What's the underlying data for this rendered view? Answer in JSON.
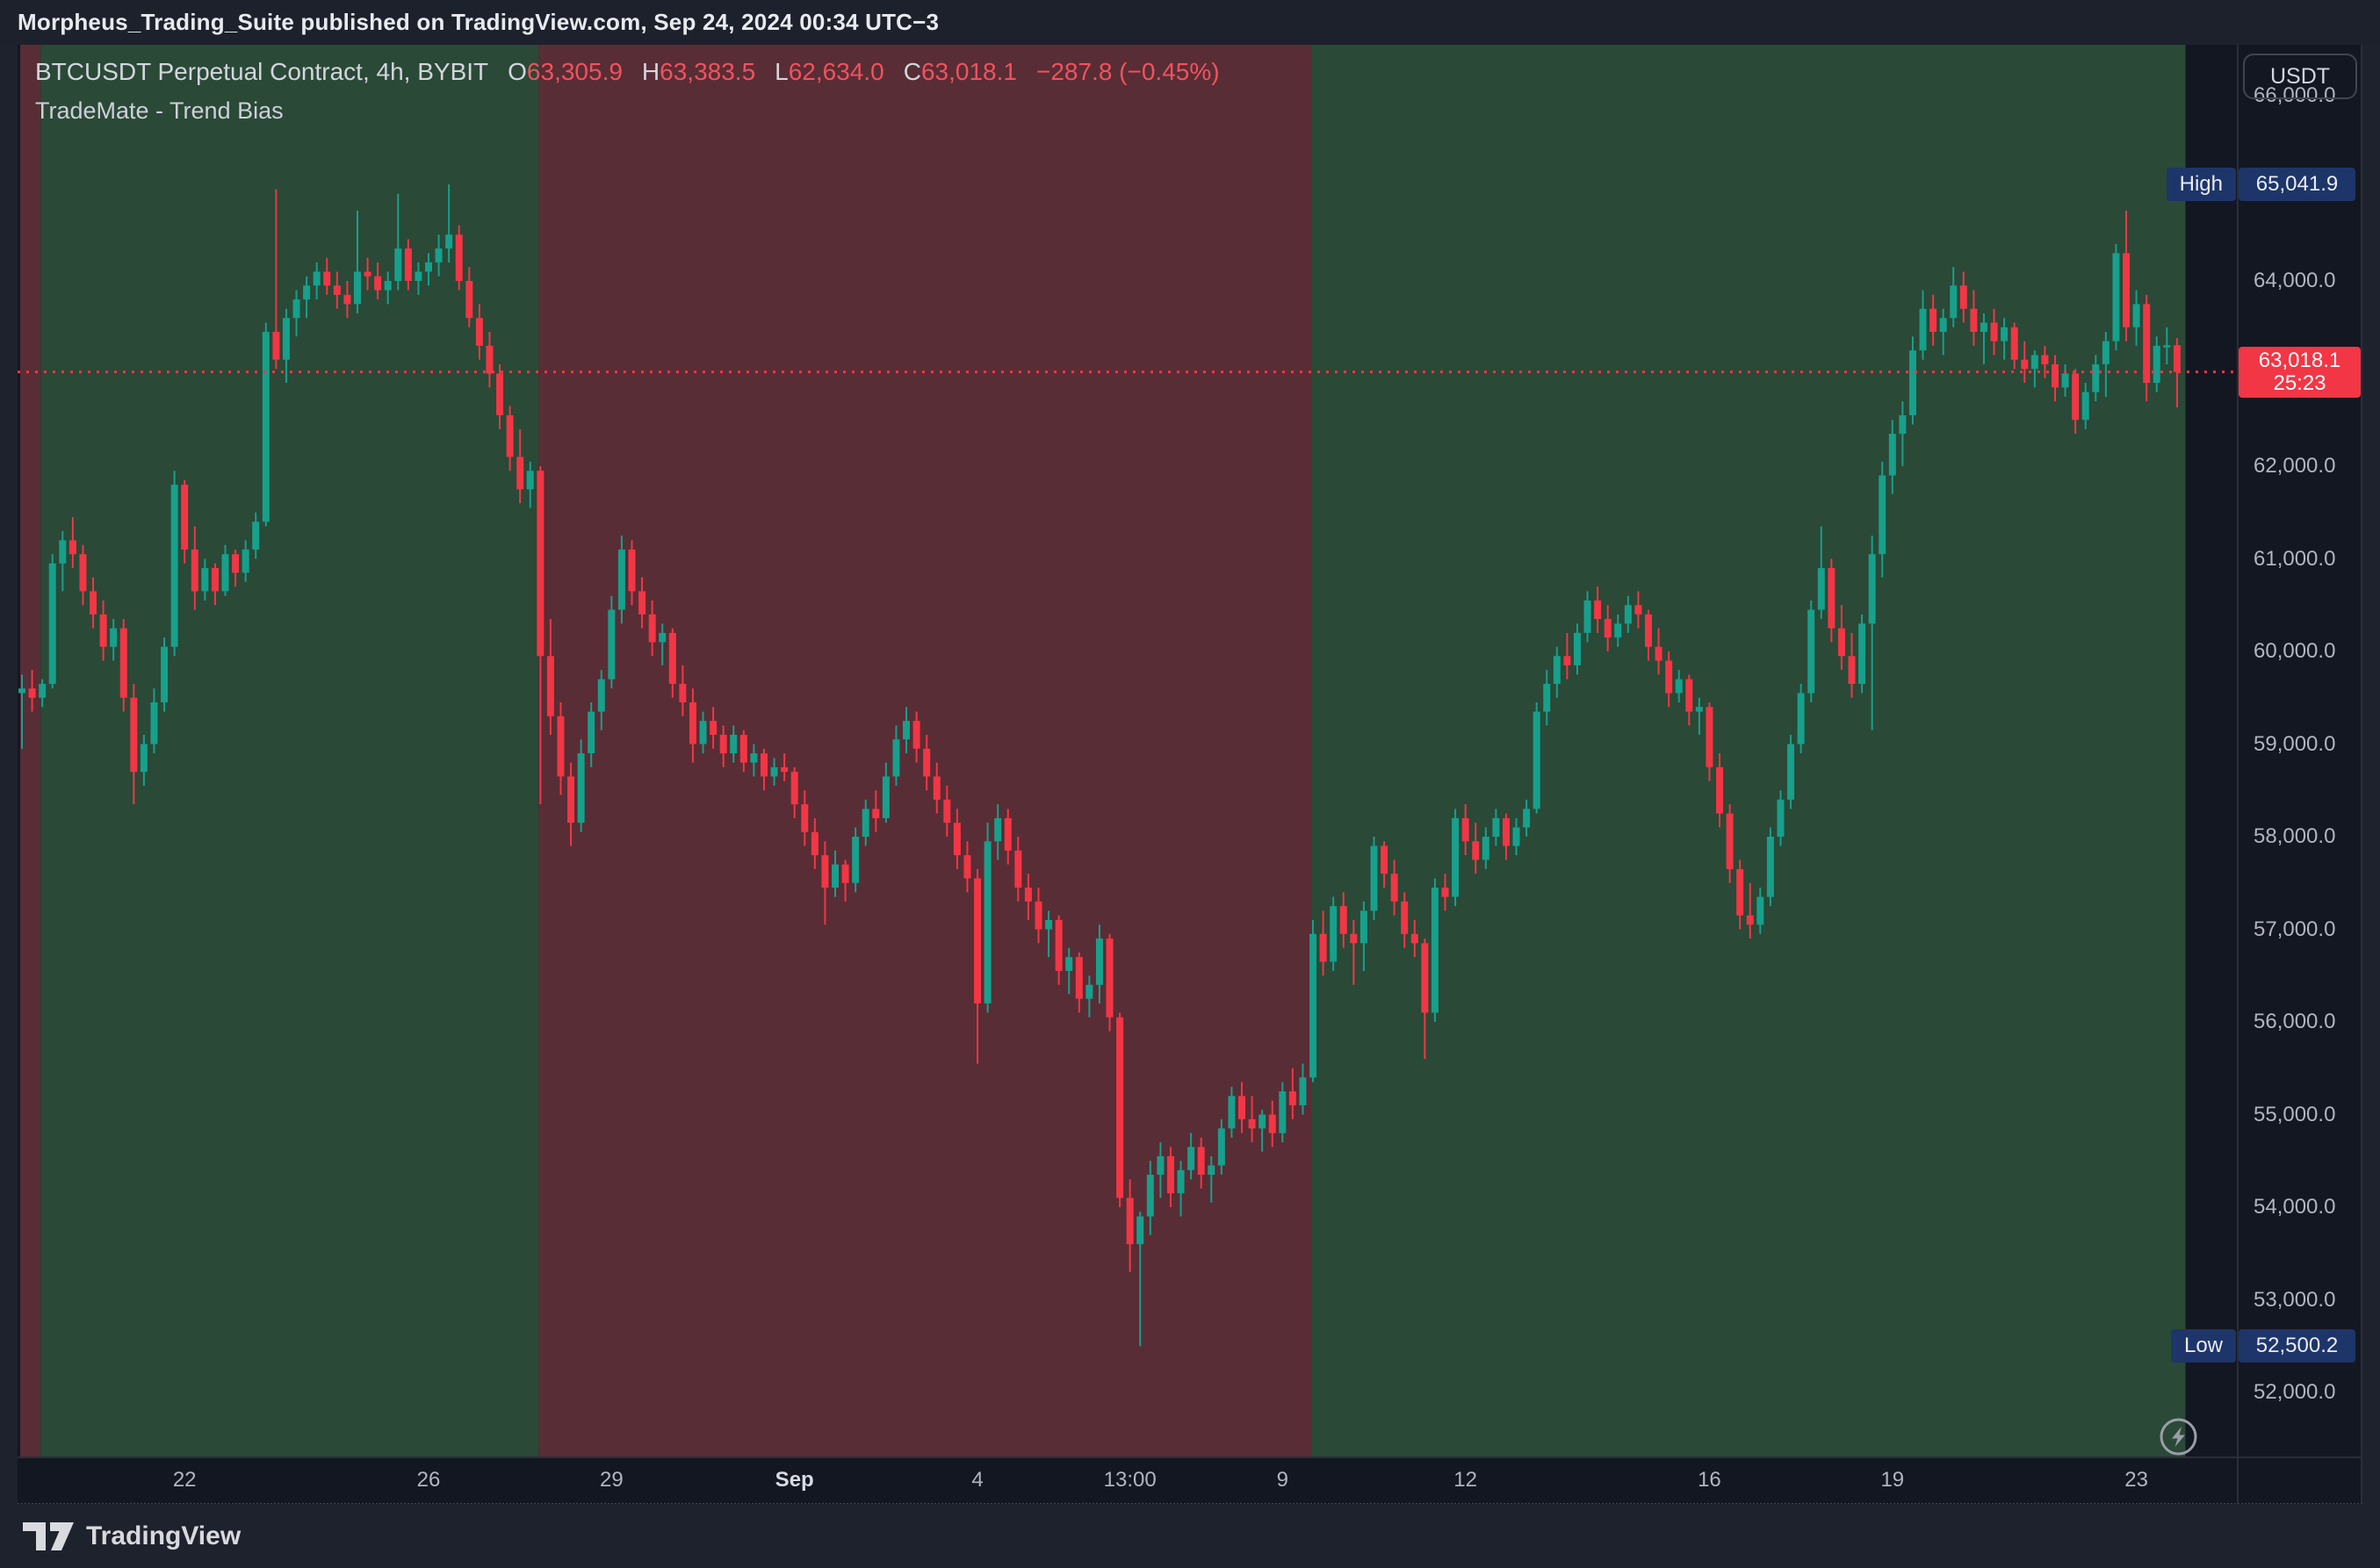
{
  "topbar": {
    "text": "Morpheus_Trading_Suite published on TradingView.com, Sep 24, 2024 00:34 UTC−3"
  },
  "header": {
    "symbol": "BTCUSDT Perpetual Contract, 4h, BYBIT",
    "ohlc": [
      {
        "label": "O",
        "value": "63,305.9"
      },
      {
        "label": "H",
        "value": "63,383.5"
      },
      {
        "label": "L",
        "value": "62,634.0"
      },
      {
        "label": "C",
        "value": "63,018.1"
      }
    ],
    "change": "−287.8 (−0.45%)",
    "indicator": "TradeMate - Trend Bias"
  },
  "price_scale": {
    "currency_button": "USDT",
    "labels": [
      "66,000.0",
      "65,000.0",
      "64,000.0",
      "63,000.0",
      "62,000.0",
      "61,000.0",
      "60,000.0",
      "59,000.0",
      "58,000.0",
      "57,000.0",
      "56,000.0",
      "55,000.0",
      "54,000.0",
      "53,000.0",
      "52,000.0"
    ]
  },
  "time_axis": {
    "labels": [
      {
        "text": "22",
        "bar": 16
      },
      {
        "text": "26",
        "bar": 40
      },
      {
        "text": "29",
        "bar": 58
      },
      {
        "text": "Sep",
        "bar": 76,
        "emph": true
      },
      {
        "text": "4",
        "bar": 94
      },
      {
        "text": "13:00",
        "bar": 109
      },
      {
        "text": "9",
        "bar": 124
      },
      {
        "text": "12",
        "bar": 142
      },
      {
        "text": "16",
        "bar": 166
      },
      {
        "text": "19",
        "bar": 184
      },
      {
        "text": "23",
        "bar": 208
      }
    ]
  },
  "markers": {
    "high": {
      "label": "High",
      "value": "65,041.9"
    },
    "low": {
      "label": "Low",
      "value": "52,500.2"
    },
    "last": {
      "value": "63,018.1",
      "countdown": "25:23"
    }
  },
  "footer": {
    "brand": "TradingView"
  },
  "theme": {
    "candle_up": "#17a08c",
    "candle_down": "#f23645",
    "zone_bull": "#2a4937",
    "zone_bear": "#592d35",
    "badge_blue": "#1e3569",
    "badge_red": "#f23645",
    "axis_text": "#b2b5be"
  },
  "chart_data": {
    "type": "candlestick",
    "title": "BTCUSDT Perpetual Contract, 4h, BYBIT",
    "ylabel": "USDT",
    "interval": "4h",
    "x_start": "2024-08-19",
    "x_end": "2024-09-24",
    "ylim": [
      51300,
      66550
    ],
    "grid": false,
    "bars_total": 213,
    "last_price": 63018.1,
    "range_high": 65041.9,
    "range_low": 52500.2,
    "trend_zones": [
      {
        "start_bar": 0,
        "end_bar": 2,
        "bias": "bearish"
      },
      {
        "start_bar": 2,
        "end_bar": 51,
        "bias": "bullish"
      },
      {
        "start_bar": 51,
        "end_bar": 127,
        "bias": "bearish"
      },
      {
        "start_bar": 127,
        "end_bar": 213,
        "bias": "bullish"
      }
    ],
    "candles": [
      [
        59550,
        59750,
        58950,
        59600
      ],
      [
        59600,
        59800,
        59350,
        59500
      ],
      [
        59500,
        59700,
        59400,
        59650
      ],
      [
        59650,
        61050,
        59600,
        60950
      ],
      [
        60950,
        61300,
        60650,
        61200
      ],
      [
        61200,
        61450,
        60900,
        61050
      ],
      [
        61050,
        61150,
        60500,
        60650
      ],
      [
        60650,
        60800,
        60250,
        60400
      ],
      [
        60400,
        60550,
        59900,
        60050
      ],
      [
        60050,
        60350,
        59900,
        60250
      ],
      [
        60250,
        60350,
        59350,
        59500
      ],
      [
        59500,
        59650,
        58350,
        58700
      ],
      [
        58700,
        59100,
        58550,
        59000
      ],
      [
        59000,
        59600,
        58900,
        59450
      ],
      [
        59450,
        60150,
        59350,
        60050
      ],
      [
        60050,
        61950,
        59950,
        61800
      ],
      [
        61800,
        61850,
        60950,
        61100
      ],
      [
        61100,
        61350,
        60450,
        60650
      ],
      [
        60650,
        61000,
        60550,
        60900
      ],
      [
        60900,
        60950,
        60500,
        60650
      ],
      [
        60650,
        61150,
        60600,
        61050
      ],
      [
        61050,
        61100,
        60700,
        60850
      ],
      [
        60850,
        61200,
        60750,
        61100
      ],
      [
        61100,
        61500,
        61000,
        61400
      ],
      [
        61400,
        63550,
        61350,
        63450
      ],
      [
        63450,
        64990,
        63050,
        63150
      ],
      [
        63150,
        63700,
        62900,
        63600
      ],
      [
        63600,
        63900,
        63400,
        63800
      ],
      [
        63800,
        64050,
        63600,
        63950
      ],
      [
        63950,
        64200,
        63800,
        64100
      ],
      [
        64100,
        64250,
        63850,
        63950
      ],
      [
        63950,
        64100,
        63700,
        63850
      ],
      [
        63850,
        64000,
        63600,
        63750
      ],
      [
        63750,
        64760,
        63650,
        64100
      ],
      [
        64100,
        64250,
        63900,
        64050
      ],
      [
        64050,
        64200,
        63800,
        63900
      ],
      [
        63900,
        64100,
        63750,
        64000
      ],
      [
        64000,
        64940,
        63900,
        64350
      ],
      [
        64350,
        64450,
        63900,
        64000
      ],
      [
        64000,
        64200,
        63850,
        64100
      ],
      [
        64100,
        64300,
        63950,
        64200
      ],
      [
        64200,
        64500,
        64050,
        64350
      ],
      [
        64350,
        65042,
        64200,
        64500
      ],
      [
        64500,
        64600,
        63900,
        64000
      ],
      [
        64000,
        64150,
        63500,
        63600
      ],
      [
        63600,
        63750,
        63150,
        63300
      ],
      [
        63300,
        63450,
        62850,
        63000
      ],
      [
        63000,
        63100,
        62400,
        62550
      ],
      [
        62550,
        62650,
        61950,
        62100
      ],
      [
        62100,
        62400,
        61600,
        61750
      ],
      [
        61750,
        62050,
        61550,
        61950
      ],
      [
        61950,
        62000,
        58350,
        59950
      ],
      [
        59950,
        60350,
        59100,
        59300
      ],
      [
        59300,
        59450,
        58450,
        58650
      ],
      [
        58650,
        58800,
        57900,
        58150
      ],
      [
        58150,
        59050,
        58050,
        58900
      ],
      [
        58900,
        59450,
        58750,
        59350
      ],
      [
        59350,
        59800,
        59150,
        59700
      ],
      [
        59700,
        60600,
        59600,
        60450
      ],
      [
        60450,
        61250,
        60300,
        61100
      ],
      [
        61100,
        61200,
        60500,
        60650
      ],
      [
        60650,
        60800,
        60250,
        60400
      ],
      [
        60400,
        60550,
        59950,
        60100
      ],
      [
        60100,
        60300,
        59850,
        60200
      ],
      [
        60200,
        60250,
        59500,
        59650
      ],
      [
        59650,
        59850,
        59300,
        59450
      ],
      [
        59450,
        59600,
        58800,
        59000
      ],
      [
        59000,
        59350,
        58900,
        59250
      ],
      [
        59250,
        59400,
        58950,
        59100
      ],
      [
        59100,
        59200,
        58750,
        58900
      ],
      [
        58900,
        59200,
        58800,
        59100
      ],
      [
        59100,
        59150,
        58700,
        58800
      ],
      [
        58800,
        59000,
        58650,
        58900
      ],
      [
        58900,
        58950,
        58500,
        58650
      ],
      [
        58650,
        58850,
        58550,
        58750
      ],
      [
        58750,
        58900,
        58600,
        58700
      ],
      [
        58700,
        58750,
        58200,
        58350
      ],
      [
        58350,
        58500,
        57900,
        58050
      ],
      [
        58050,
        58200,
        57650,
        57800
      ],
      [
        57800,
        57950,
        57050,
        57450
      ],
      [
        57450,
        57850,
        57350,
        57700
      ],
      [
        57700,
        57750,
        57300,
        57500
      ],
      [
        57500,
        58100,
        57400,
        58000
      ],
      [
        58000,
        58400,
        57900,
        58300
      ],
      [
        58300,
        58500,
        58050,
        58200
      ],
      [
        58200,
        58800,
        58150,
        58650
      ],
      [
        58650,
        59200,
        58550,
        59050
      ],
      [
        59050,
        59400,
        58900,
        59250
      ],
      [
        59250,
        59350,
        58800,
        58950
      ],
      [
        58950,
        59100,
        58500,
        58650
      ],
      [
        58650,
        58800,
        58250,
        58400
      ],
      [
        58400,
        58550,
        58000,
        58150
      ],
      [
        58150,
        58300,
        57650,
        57800
      ],
      [
        57800,
        57950,
        57400,
        57550
      ],
      [
        57550,
        57650,
        55550,
        56200
      ],
      [
        56200,
        58150,
        56100,
        57950
      ],
      [
        57950,
        58350,
        57750,
        58200
      ],
      [
        58200,
        58300,
        57700,
        57850
      ],
      [
        57850,
        58000,
        57300,
        57450
      ],
      [
        57450,
        57600,
        57100,
        57300
      ],
      [
        57300,
        57450,
        56850,
        57000
      ],
      [
        57000,
        57200,
        56700,
        57100
      ],
      [
        57100,
        57150,
        56400,
        56550
      ],
      [
        56550,
        56800,
        56300,
        56700
      ],
      [
        56700,
        56750,
        56100,
        56250
      ],
      [
        56250,
        56500,
        56050,
        56400
      ],
      [
        56400,
        57050,
        56200,
        56900
      ],
      [
        56900,
        56950,
        55900,
        56050
      ],
      [
        56050,
        56100,
        54000,
        54100
      ],
      [
        54100,
        54300,
        53300,
        53600
      ],
      [
        53600,
        53950,
        52500,
        53900
      ],
      [
        53900,
        54500,
        53700,
        54350
      ],
      [
        54350,
        54700,
        54100,
        54550
      ],
      [
        54550,
        54650,
        54000,
        54150
      ],
      [
        54150,
        54500,
        53900,
        54400
      ],
      [
        54400,
        54800,
        54300,
        54650
      ],
      [
        54650,
        54750,
        54200,
        54350
      ],
      [
        54350,
        54550,
        54050,
        54450
      ],
      [
        54450,
        54950,
        54350,
        54850
      ],
      [
        54850,
        55300,
        54750,
        55200
      ],
      [
        55200,
        55350,
        54800,
        54950
      ],
      [
        54950,
        55200,
        54700,
        54850
      ],
      [
        54850,
        55050,
        54600,
        55000
      ],
      [
        55000,
        55150,
        54650,
        54800
      ],
      [
        54800,
        55350,
        54700,
        55250
      ],
      [
        55250,
        55500,
        54950,
        55100
      ],
      [
        55100,
        55550,
        55000,
        55400
      ],
      [
        55400,
        57100,
        55350,
        56950
      ],
      [
        56950,
        57200,
        56500,
        56650
      ],
      [
        56650,
        57350,
        56550,
        57250
      ],
      [
        57250,
        57400,
        56800,
        56950
      ],
      [
        56950,
        57100,
        56400,
        56850
      ],
      [
        56850,
        57300,
        56550,
        57200
      ],
      [
        57200,
        58000,
        57100,
        57900
      ],
      [
        57900,
        57950,
        57450,
        57600
      ],
      [
        57600,
        57750,
        57150,
        57300
      ],
      [
        57300,
        57400,
        56800,
        56950
      ],
      [
        56950,
        57100,
        56700,
        56850
      ],
      [
        56850,
        56900,
        55600,
        56100
      ],
      [
        56100,
        57550,
        56000,
        57450
      ],
      [
        57450,
        57600,
        57200,
        57350
      ],
      [
        57350,
        58300,
        57250,
        58200
      ],
      [
        58200,
        58350,
        57800,
        57950
      ],
      [
        57950,
        58150,
        57600,
        57750
      ],
      [
        57750,
        58100,
        57650,
        58000
      ],
      [
        58000,
        58300,
        57900,
        58200
      ],
      [
        58200,
        58250,
        57750,
        57900
      ],
      [
        57900,
        58200,
        57800,
        58100
      ],
      [
        58100,
        58400,
        58000,
        58300
      ],
      [
        58300,
        59450,
        58250,
        59350
      ],
      [
        59350,
        59800,
        59200,
        59650
      ],
      [
        59650,
        60050,
        59500,
        59950
      ],
      [
        59950,
        60200,
        59700,
        59850
      ],
      [
        59850,
        60300,
        59750,
        60200
      ],
      [
        60200,
        60650,
        60100,
        60550
      ],
      [
        60550,
        60700,
        60200,
        60350
      ],
      [
        60350,
        60500,
        60000,
        60150
      ],
      [
        60150,
        60400,
        60050,
        60300
      ],
      [
        60300,
        60600,
        60200,
        60500
      ],
      [
        60500,
        60650,
        60250,
        60400
      ],
      [
        60400,
        60450,
        59900,
        60050
      ],
      [
        60050,
        60250,
        59750,
        59900
      ],
      [
        59900,
        60000,
        59400,
        59550
      ],
      [
        59550,
        59800,
        59450,
        59700
      ],
      [
        59700,
        59750,
        59200,
        59350
      ],
      [
        59350,
        59500,
        59100,
        59400
      ],
      [
        59400,
        59450,
        58600,
        58750
      ],
      [
        58750,
        58900,
        58100,
        58250
      ],
      [
        58250,
        58350,
        57500,
        57650
      ],
      [
        57650,
        57750,
        57000,
        57150
      ],
      [
        57150,
        57500,
        56900,
        57050
      ],
      [
        57050,
        57450,
        56950,
        57350
      ],
      [
        57350,
        58100,
        57250,
        58000
      ],
      [
        58000,
        58500,
        57900,
        58400
      ],
      [
        58400,
        59100,
        58300,
        59000
      ],
      [
        59000,
        59650,
        58900,
        59550
      ],
      [
        59550,
        60550,
        59450,
        60450
      ],
      [
        60450,
        61350,
        60350,
        60900
      ],
      [
        60900,
        61000,
        60100,
        60250
      ],
      [
        60250,
        60500,
        59800,
        59950
      ],
      [
        59950,
        60200,
        59500,
        59650
      ],
      [
        59650,
        60400,
        59550,
        60300
      ],
      [
        60300,
        61250,
        59150,
        61050
      ],
      [
        61050,
        62050,
        60800,
        61900
      ],
      [
        61900,
        62500,
        61700,
        62350
      ],
      [
        62350,
        62700,
        62000,
        62550
      ],
      [
        62550,
        63400,
        62450,
        63250
      ],
      [
        63250,
        63900,
        63150,
        63700
      ],
      [
        63700,
        63850,
        63300,
        63450
      ],
      [
        63450,
        63700,
        63200,
        63600
      ],
      [
        63600,
        64150,
        63500,
        63950
      ],
      [
        63950,
        64100,
        63550,
        63700
      ],
      [
        63700,
        63900,
        63300,
        63450
      ],
      [
        63450,
        63650,
        63100,
        63550
      ],
      [
        63550,
        63700,
        63200,
        63350
      ],
      [
        63350,
        63600,
        63150,
        63500
      ],
      [
        63500,
        63550,
        63050,
        63150
      ],
      [
        63150,
        63350,
        62900,
        63050
      ],
      [
        63050,
        63250,
        62850,
        63200
      ],
      [
        63200,
        63300,
        62950,
        63100
      ],
      [
        63100,
        63200,
        62700,
        62850
      ],
      [
        62850,
        63100,
        62750,
        63000
      ],
      [
        63000,
        63050,
        62350,
        62500
      ],
      [
        62500,
        62900,
        62400,
        62800
      ],
      [
        62800,
        63200,
        62700,
        63100
      ],
      [
        63100,
        63450,
        62750,
        63350
      ],
      [
        63350,
        64400,
        63250,
        64300
      ],
      [
        64300,
        64760,
        63350,
        63500
      ],
      [
        63500,
        63900,
        63300,
        63750
      ],
      [
        63750,
        63850,
        62700,
        62900
      ],
      [
        62900,
        63400,
        62800,
        63300
      ],
      [
        63300,
        63500,
        63100,
        63306
      ],
      [
        63305.9,
        63383.5,
        62634.0,
        63018.1
      ]
    ]
  }
}
